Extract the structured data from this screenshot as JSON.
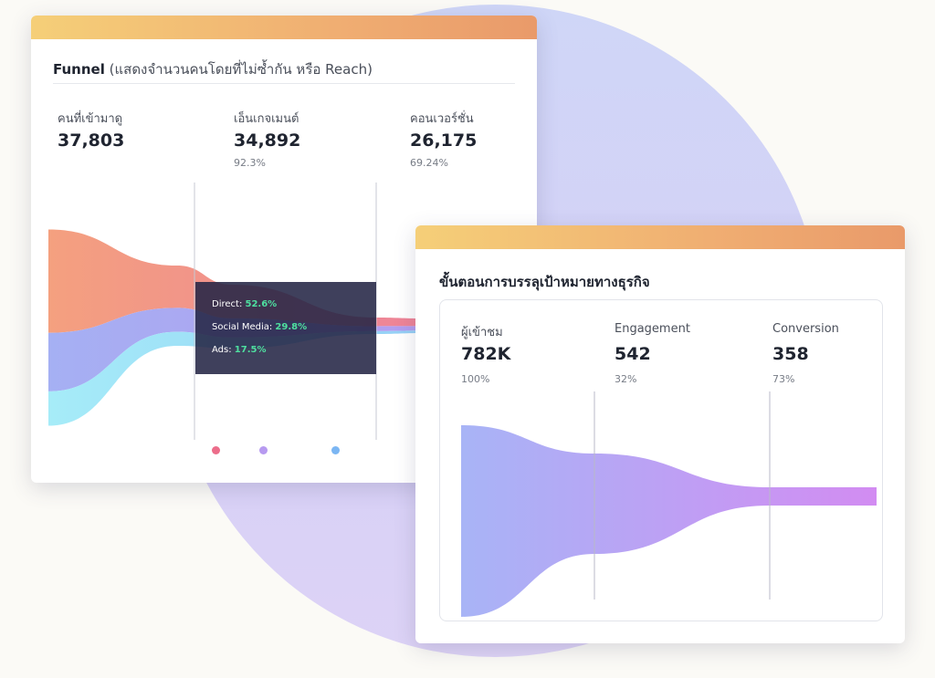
{
  "card1": {
    "title_bold": "Funnel",
    "title_rest": "(แสดงจำนวนคนโดยที่ไม่ซ้ำกัน หรือ Reach)",
    "metrics": [
      {
        "label": "คนที่เข้ามาดู",
        "value": "37,803",
        "pct": ""
      },
      {
        "label": "เอ็นเกจเมนต์",
        "value": "34,892",
        "pct": "92.3%"
      },
      {
        "label": "คอนเวอร์ชั่น",
        "value": "26,175",
        "pct": "69.24%"
      }
    ],
    "tooltip": [
      {
        "label": "Direct:",
        "value": "52.6%"
      },
      {
        "label": "Social Media:",
        "value": "29.8%"
      },
      {
        "label": "Ads:",
        "value": "17.5%"
      }
    ],
    "legend_colors": [
      "#ec6d8a",
      "#b79af0",
      "#7bb6f3"
    ]
  },
  "card2": {
    "title": "ขั้นตอนการบรรลุเป้าหมายทางธุรกิจ",
    "metrics": [
      {
        "label": "ผู้เข้าชม",
        "value": "782K",
        "pct": "100%"
      },
      {
        "label": "Engagement",
        "value": "542",
        "pct": "32%"
      },
      {
        "label": "Conversion",
        "value": "358",
        "pct": "73%"
      }
    ]
  },
  "chart_data": [
    {
      "type": "area",
      "title": "Funnel (แสดงจำนวนคนโดยที่ไม่ซ้ำกัน หรือ Reach)",
      "categories": [
        "คนที่เข้ามาดู",
        "เอ็นเกจเมนต์",
        "คอนเวอร์ชั่น"
      ],
      "values": [
        37803,
        34892,
        26175
      ],
      "series": [
        {
          "name": "Direct",
          "share": 52.6,
          "color": "#ef8f8a"
        },
        {
          "name": "Social Media",
          "share": 29.8,
          "color": "#a7a3f3"
        },
        {
          "name": "Ads",
          "share": 17.5,
          "color": "#9fe2f6"
        }
      ]
    },
    {
      "type": "area",
      "title": "ขั้นตอนการบรรลุเป้าหมายทางธุรกิจ",
      "categories": [
        "ผู้เข้าชม",
        "Engagement",
        "Conversion"
      ],
      "values": [
        782000,
        542,
        358
      ],
      "percent": [
        "100%",
        "32%",
        "73%"
      ]
    }
  ]
}
